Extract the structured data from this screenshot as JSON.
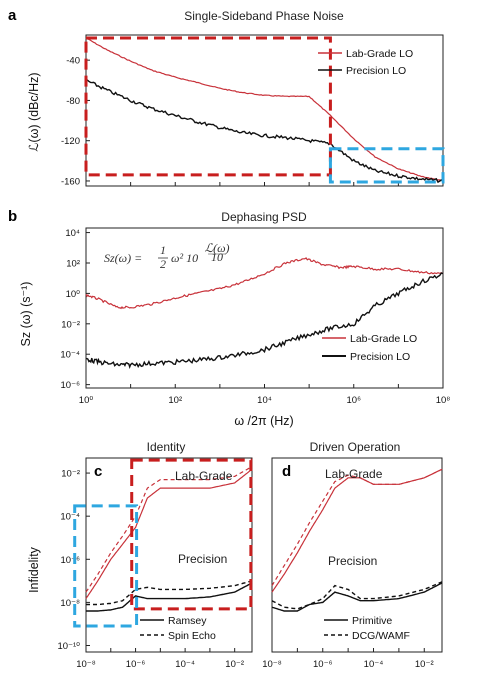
{
  "colors": {
    "red": "#c8323a",
    "black": "#111111",
    "box_red": "#c81e1e",
    "box_blue": "#2ea7e0"
  },
  "chart_data": [
    {
      "id": "a",
      "type": "line",
      "panel_label": "a",
      "title": "Single-Sideband Phase Noise",
      "ylabel": "ℒ(ω) (dBc/Hz)",
      "xscale": "log",
      "xlim": [
        1,
        100000000
      ],
      "ylim": [
        -165,
        -15
      ],
      "y_ticks": [
        "-40",
        "-80",
        "-120",
        "-160"
      ],
      "y_tick_values": [
        -40,
        -80,
        -120,
        -160
      ],
      "legend": {
        "position": "top-right",
        "entries": [
          "Lab-Grade LO",
          "Precision LO"
        ]
      },
      "series": [
        {
          "name": "Lab-Grade LO",
          "color": "red",
          "x": [
            1,
            3,
            10,
            30,
            100,
            300,
            1000,
            3000,
            10000,
            30000,
            100000,
            300000,
            1000000,
            3000000,
            10000000,
            30000000,
            100000000
          ],
          "y": [
            -18,
            -30,
            -41,
            -50,
            -57,
            -62,
            -68,
            -72,
            -75,
            -76,
            -76,
            -95,
            -118,
            -136,
            -148,
            -155,
            -160
          ]
        },
        {
          "name": "Precision LO",
          "color": "black",
          "x": [
            1,
            3,
            10,
            30,
            100,
            300,
            1000,
            3000,
            10000,
            30000,
            100000,
            300000,
            1000000,
            3000000,
            10000000,
            30000000,
            100000000
          ],
          "y": [
            -60,
            -70,
            -80,
            -88,
            -95,
            -101,
            -107,
            -112,
            -115,
            -117,
            -120,
            -123,
            -140,
            -150,
            -155,
            -158,
            -160
          ]
        }
      ],
      "highlight_boxes": [
        {
          "color": "box_red",
          "x_range": [
            1,
            300000
          ],
          "y_range": [
            -154,
            -18
          ]
        },
        {
          "color": "box_blue",
          "x_range": [
            300000,
            100000000
          ],
          "y_range": [
            -161,
            -128
          ]
        }
      ]
    },
    {
      "id": "b",
      "type": "line",
      "panel_label": "b",
      "title": "Dephasing PSD",
      "ylabel": "Sz (ω) (s⁻¹)",
      "xlabel": "ω /2π (Hz)",
      "xscale": "log",
      "yscale": "log",
      "xlim": [
        1,
        100000000
      ],
      "ylim": [
        6e-07,
        20000
      ],
      "x_ticks": [
        "10⁰",
        "10²",
        "10⁴",
        "10⁶",
        "10⁸"
      ],
      "x_tick_values": [
        1,
        100,
        10000,
        1000000,
        100000000
      ],
      "y_ticks": [
        "10⁴",
        "10²",
        "10⁰",
        "10⁻²",
        "10⁻⁴",
        "10⁻⁶"
      ],
      "y_tick_values": [
        10000,
        100,
        1,
        0.01,
        0.0001,
        1e-06
      ],
      "equation": {
        "lhs": "Sz(ω) =",
        "frac_num": "1",
        "frac_den": "2",
        "rhs": "ω² 10",
        "exp_num": "ℒ(ω)",
        "exp_den": "10"
      },
      "legend": {
        "position": "bottom-right",
        "entries": [
          "Lab-Grade LO",
          "Precision LO"
        ]
      },
      "series": [
        {
          "name": "Lab-Grade LO",
          "color": "red",
          "x": [
            1,
            2,
            5,
            10,
            30,
            100,
            300,
            1000,
            3000,
            10000,
            30000,
            80000,
            200000,
            500000,
            1000000,
            3000000,
            10000000,
            30000000,
            100000000
          ],
          "y": [
            0.8,
            0.4,
            0.12,
            0.12,
            0.2,
            0.5,
            1,
            2,
            5,
            20,
            100,
            200,
            80,
            50,
            60,
            40,
            40,
            25,
            20
          ]
        },
        {
          "name": "Precision LO",
          "color": "black",
          "x": [
            1,
            2,
            5,
            10,
            30,
            100,
            300,
            1000,
            3000,
            10000,
            30000,
            100000,
            300000,
            1000000,
            3000000,
            10000000,
            30000000,
            100000000
          ],
          "y": [
            5e-05,
            3e-05,
            2e-05,
            2e-05,
            2.5e-05,
            3e-05,
            4e-05,
            6e-05,
            0.0001,
            0.0002,
            0.0006,
            0.002,
            0.005,
            0.01,
            0.15,
            1,
            5,
            20
          ]
        }
      ]
    },
    {
      "id": "c",
      "type": "line",
      "panel_label": "c",
      "title": "Identity",
      "ylabel": "Infidelity",
      "xscale": "log",
      "yscale": "log",
      "xlim": [
        1e-08,
        0.05
      ],
      "ylim": [
        5e-11,
        0.05
      ],
      "x_ticks": [
        "10⁻⁸",
        "10⁻⁶",
        "10⁻⁴",
        "10⁻²"
      ],
      "x_tick_values": [
        1e-08,
        1e-06,
        0.0001,
        0.01
      ],
      "y_ticks": [
        "10⁻²",
        "10⁻⁴",
        "10⁻⁶",
        "10⁻⁸",
        "10⁻¹⁰"
      ],
      "y_tick_values": [
        0.01,
        0.0001,
        1e-06,
        1e-08,
        1e-10
      ],
      "annotations": [
        "Lab-Grade",
        "Precision"
      ],
      "legend": {
        "position": "bottom-right",
        "entries": [
          "Ramsey",
          "Spin Echo"
        ]
      },
      "series": [
        {
          "name": "Ramsey",
          "color": "red",
          "style": "solid",
          "x": [
            1e-08,
            3e-08,
            1e-07,
            3e-07,
            1e-06,
            3e-06,
            1e-05,
            0.0001,
            0.001,
            0.01,
            0.05
          ],
          "y": [
            1.5e-08,
            1e-07,
            1e-06,
            5e-06,
            3e-05,
            0.0007,
            0.002,
            0.002,
            0.002,
            0.0035,
            0.015
          ]
        },
        {
          "name": "Spin Echo",
          "color": "red",
          "style": "dash",
          "x": [
            1e-08,
            3e-08,
            1e-07,
            3e-07,
            1e-06,
            3e-06,
            1e-05,
            0.0001,
            0.001,
            0.01,
            0.05
          ],
          "y": [
            3e-08,
            2e-07,
            2e-06,
            1.2e-05,
            0.0001,
            0.002,
            0.005,
            0.005,
            0.005,
            0.007,
            0.02
          ]
        },
        {
          "name": "Ramsey",
          "color": "black",
          "style": "solid",
          "x": [
            1e-08,
            3e-08,
            1e-07,
            3e-07,
            1e-06,
            3e-06,
            1e-05,
            0.0001,
            0.001,
            0.01,
            0.05
          ],
          "y": [
            4e-09,
            4e-09,
            4.5e-09,
            6e-09,
            2e-08,
            1.5e-08,
            1.5e-08,
            1.5e-08,
            1.8e-08,
            3e-08,
            8e-08
          ]
        },
        {
          "name": "Spin Echo",
          "color": "black",
          "style": "dash",
          "x": [
            1e-08,
            3e-08,
            1e-07,
            3e-07,
            1e-06,
            3e-06,
            1e-05,
            0.0001,
            0.001,
            0.01,
            0.05
          ],
          "y": [
            8e-09,
            8e-09,
            9e-09,
            1.2e-08,
            4e-08,
            5e-08,
            4e-08,
            4e-08,
            4.5e-08,
            6e-08,
            1e-07
          ]
        }
      ],
      "highlight_boxes": [
        {
          "color": "box_red",
          "x_range": [
            7e-07,
            0.045
          ],
          "y_range": [
            5e-09,
            0.04
          ]
        },
        {
          "color": "box_blue",
          "x_range": [
            3.5e-09,
            1.1e-06
          ],
          "y_range": [
            8e-10,
            0.0003
          ]
        }
      ]
    },
    {
      "id": "d",
      "type": "line",
      "panel_label": "d",
      "title": "Driven Operation",
      "xscale": "log",
      "yscale": "log",
      "xlim": [
        1e-08,
        0.05
      ],
      "ylim": [
        5e-11,
        0.05
      ],
      "x_ticks": [
        "10⁻⁸",
        "10⁻⁶",
        "10⁻⁴",
        "10⁻²"
      ],
      "x_tick_values": [
        1e-08,
        1e-06,
        0.0001,
        0.01
      ],
      "annotations": [
        "Lab-Grade",
        "Precision"
      ],
      "legend": {
        "position": "bottom-right",
        "entries": [
          "Primitive",
          "DCG/WAMF"
        ]
      },
      "series": [
        {
          "name": "Primitive",
          "color": "red",
          "style": "solid",
          "x": [
            1e-08,
            3e-08,
            1e-07,
            3e-07,
            1e-06,
            3e-06,
            1e-05,
            3e-05,
            0.0001,
            0.001,
            0.01,
            0.05
          ],
          "y": [
            3e-08,
            2e-07,
            2e-06,
            2e-05,
            0.0002,
            0.002,
            0.006,
            0.006,
            0.003,
            0.003,
            0.006,
            0.015
          ]
        },
        {
          "name": "DCG/WAMF",
          "color": "red",
          "style": "dash",
          "x": [
            1e-08,
            3e-08,
            1e-07,
            3e-07,
            1e-06,
            3e-06,
            1e-05,
            3e-05,
            0.0001,
            0.001,
            0.01,
            0.05
          ],
          "y": [
            6e-08,
            5e-07,
            5e-06,
            5e-05,
            0.0005,
            0.004,
            0.008,
            0.006,
            0.003,
            0.003,
            0.006,
            0.015
          ]
        },
        {
          "name": "Primitive",
          "color": "black",
          "style": "solid",
          "x": [
            1e-08,
            3e-08,
            1e-07,
            3e-07,
            1e-06,
            3e-06,
            1e-05,
            3e-05,
            0.0001,
            0.001,
            0.01,
            0.05
          ],
          "y": [
            6e-09,
            4e-09,
            4e-09,
            8e-09,
            1e-08,
            3e-08,
            2e-08,
            1.2e-08,
            1.2e-08,
            1.5e-08,
            3e-08,
            8e-08
          ]
        },
        {
          "name": "DCG/WAMF",
          "color": "black",
          "style": "dash",
          "x": [
            1e-08,
            3e-08,
            1e-07,
            3e-07,
            1e-06,
            3e-06,
            1e-05,
            3e-05,
            0.0001,
            0.001,
            0.01,
            0.05
          ],
          "y": [
            1.2e-08,
            6e-09,
            5e-09,
            8e-09,
            1.5e-08,
            6e-08,
            4e-08,
            1.5e-08,
            1.5e-08,
            2e-08,
            4e-08,
            9e-08
          ]
        }
      ]
    }
  ]
}
